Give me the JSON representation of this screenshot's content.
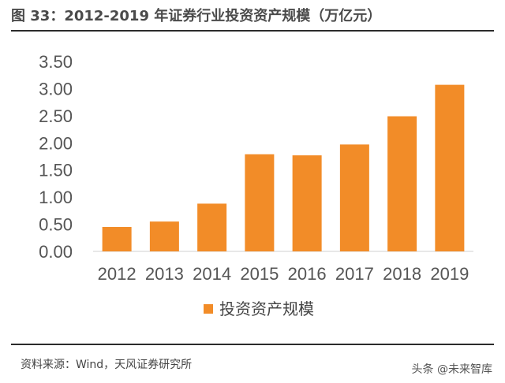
{
  "figure": {
    "title": "图 33：2012-2019 年证券行业投资资产规模（万亿元）",
    "source": "资料来源：Wind，天风证券研究所",
    "watermark": "头条 @未来智库"
  },
  "chart_data": {
    "type": "bar",
    "title": "图 33：2012-2019 年证券行业投资资产规模（万亿元）",
    "categories": [
      "2012",
      "2013",
      "2014",
      "2015",
      "2016",
      "2017",
      "2018",
      "2019"
    ],
    "series": [
      {
        "name": "投资资产规模",
        "values": [
          0.45,
          0.55,
          0.88,
          1.79,
          1.77,
          1.97,
          2.49,
          3.07
        ],
        "color": "#F28C28"
      }
    ],
    "ylim": [
      0,
      3.5
    ],
    "yticks": [
      "0.00",
      "0.50",
      "1.00",
      "1.50",
      "2.00",
      "2.50",
      "3.00",
      "3.50"
    ],
    "xlabel": "",
    "ylabel": "",
    "grid": false,
    "legend_position": "bottom"
  }
}
